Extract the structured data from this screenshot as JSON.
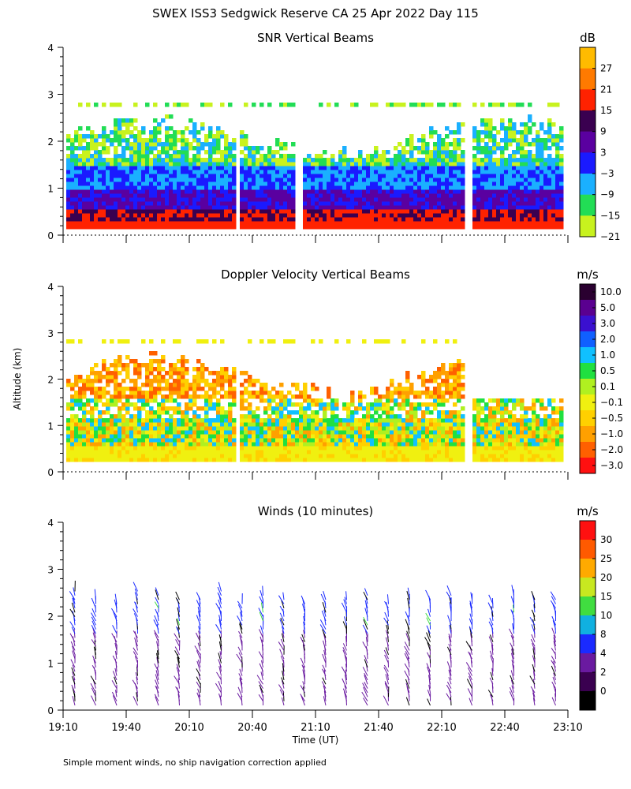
{
  "figure": {
    "title": "SWEX ISS3 Sedgwick Reserve CA  25 Apr 2022 Day 115",
    "ylabel": "Altitude (km)",
    "xlabel": "Time (UT)",
    "footnote": "Simple moment winds, no ship navigation correction applied"
  },
  "chart_data": [
    {
      "type": "heatmap",
      "title": "SNR Vertical Beams",
      "colorbar_unit": "dB",
      "x_range": [
        "19:10",
        "23:10"
      ],
      "ylim": [
        0,
        4
      ],
      "yticks": [
        0,
        1,
        2,
        3,
        4
      ],
      "colorbar": {
        "labels": [
          "27",
          "21",
          "15",
          "9",
          "3",
          "−3",
          "−9",
          "−15",
          "−21"
        ],
        "colors": [
          "#ffbb00",
          "#ff7a00",
          "#ff2200",
          "#3a0050",
          "#5a00a0",
          "#1a1aff",
          "#1ab0ff",
          "#22dd55",
          "#c8f21e"
        ]
      }
    },
    {
      "type": "heatmap",
      "title": "Doppler Velocity Vertical Beams",
      "colorbar_unit": "m/s",
      "x_range": [
        "19:10",
        "23:10"
      ],
      "ylim": [
        0,
        4
      ],
      "yticks": [
        0,
        1,
        2,
        3,
        4
      ],
      "colorbar": {
        "labels": [
          "10.0",
          "5.0",
          "3.0",
          "2.0",
          "1.0",
          "0.5",
          "0.1",
          "−0.1",
          "−0.5",
          "−1.0",
          "−2.0",
          "−3.0"
        ],
        "colors": [
          "#2a0030",
          "#5a0090",
          "#3a10d0",
          "#1060ff",
          "#10c0ff",
          "#20e040",
          "#b0f020",
          "#f0f010",
          "#ffd000",
          "#ffa000",
          "#ff6000",
          "#ff1010"
        ]
      }
    },
    {
      "type": "scatter",
      "title": "Winds (10 minutes)",
      "colorbar_unit": "m/s",
      "x": [
        "19:10",
        "19:40",
        "20:10",
        "20:40",
        "21:10",
        "21:40",
        "22:10",
        "22:40",
        "23:10"
      ],
      "ylim": [
        0,
        4
      ],
      "yticks": [
        0,
        1,
        2,
        3,
        4
      ],
      "colorbar": {
        "labels": [
          "30",
          "25",
          "20",
          "15",
          "10",
          "8",
          "4",
          "2",
          "0"
        ],
        "colors": [
          "#ff1010",
          "#ff5a00",
          "#ffaa00",
          "#c8e820",
          "#40dd40",
          "#10b0e0",
          "#1a2aff",
          "#6a1aa0",
          "#3a0050",
          "#000000"
        ]
      }
    }
  ]
}
